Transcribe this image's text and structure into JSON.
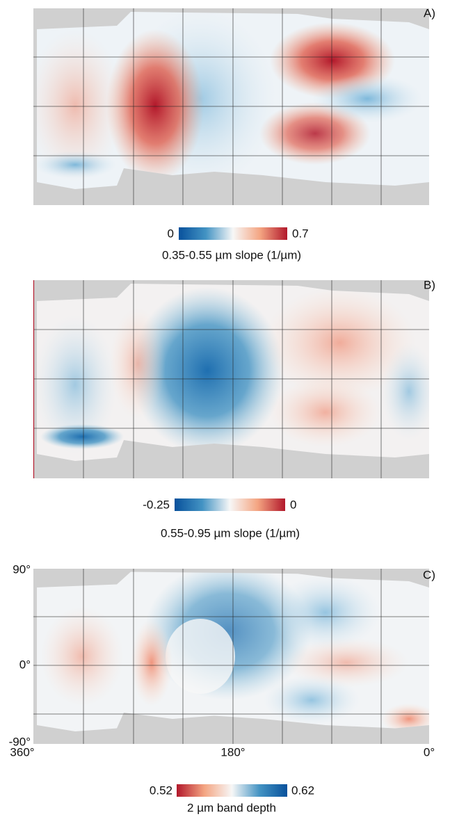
{
  "panels": [
    {
      "label": "A)",
      "colorbar": {
        "min": 0,
        "max": 0.7,
        "title": "0.35-0.55 µm slope (1/µm)"
      }
    },
    {
      "label": "B)",
      "colorbar": {
        "min": -0.25,
        "max": 0,
        "title": "0.55-0.95 µm slope (1/µm)"
      }
    },
    {
      "label": "C)",
      "colorbar": {
        "min": 0.52,
        "max": 0.62,
        "title": "2 µm band depth"
      },
      "axes": {
        "y_labels": [
          "90°",
          "0°",
          "-90°"
        ],
        "x_labels": [
          "360°",
          "180°",
          "0°"
        ]
      }
    }
  ]
}
